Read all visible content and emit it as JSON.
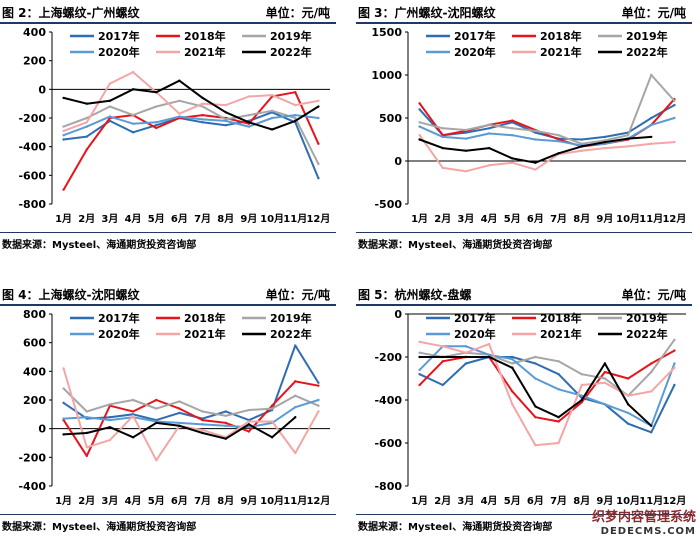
{
  "panels": [
    {
      "title": "图 2：上海螺纹-广州螺纹",
      "unit": "单位：元/吨",
      "source": "数据来源：Mysteel、海通期货投资咨询部"
    },
    {
      "title": "图 3：广州螺纹-沈阳螺纹",
      "unit": "单位：元/吨",
      "source": "数据来源：Mysteel、海通期货投资咨询部"
    },
    {
      "title": "图 4：上海螺纹-沈阳螺纹",
      "unit": "单位：元/吨",
      "source": "数据来源：Mysteel、海通期货投资咨询部"
    },
    {
      "title": "图 5：杭州螺纹-盘螺",
      "unit": "单位：元/吨",
      "source": "数据来源：Mysteel、海通期货投资咨询部"
    }
  ],
  "watermark": {
    "line1": "织梦内容管理系统",
    "line2": "DEDECMS.COM"
  },
  "series_style": [
    {
      "name": "2017年",
      "color": "#2e6db4"
    },
    {
      "name": "2018年",
      "color": "#e8141b"
    },
    {
      "name": "2019年",
      "color": "#a6a6a6"
    },
    {
      "name": "2020年",
      "color": "#5b9bd5"
    },
    {
      "name": "2021年",
      "color": "#f4a6a6"
    },
    {
      "name": "2022年",
      "color": "#000000"
    }
  ],
  "chart_data": [
    {
      "type": "line",
      "categories": [
        "1月",
        "2月",
        "3月",
        "4月",
        "5月",
        "6月",
        "7月",
        "8月",
        "9月",
        "10月",
        "11月",
        "12月"
      ],
      "ylim": [
        -800,
        400
      ],
      "yticks": [
        400,
        200,
        0,
        -200,
        -400,
        -600,
        -800
      ],
      "series": [
        {
          "name": "2017年",
          "values": [
            -350,
            -330,
            -220,
            -300,
            -250,
            -200,
            -230,
            -250,
            -220,
            -160,
            -230,
            -620
          ]
        },
        {
          "name": "2018年",
          "values": [
            -700,
            -420,
            -200,
            -180,
            -270,
            -200,
            -180,
            -200,
            -240,
            -50,
            -20,
            -380
          ]
        },
        {
          "name": "2019年",
          "values": [
            -260,
            -200,
            -120,
            -180,
            -120,
            -80,
            -120,
            -210,
            -180,
            -150,
            -200,
            -520
          ]
        },
        {
          "name": "2020年",
          "values": [
            -320,
            -260,
            -190,
            -240,
            -230,
            -190,
            -210,
            -220,
            -260,
            -200,
            -180,
            -200
          ]
        },
        {
          "name": "2021年",
          "values": [
            -290,
            -230,
            40,
            120,
            -20,
            -170,
            -100,
            -110,
            -50,
            -40,
            -110,
            -80
          ]
        },
        {
          "name": "2022年",
          "values": [
            -60,
            -100,
            -80,
            0,
            -20,
            60,
            -60,
            -160,
            -230,
            -280,
            -220,
            -120
          ]
        }
      ]
    },
    {
      "type": "line",
      "categories": [
        "1月",
        "2月",
        "3月",
        "4月",
        "5月",
        "6月",
        "7月",
        "8月",
        "9月",
        "10月",
        "11月",
        "12月"
      ],
      "ylim": [
        -500,
        1500
      ],
      "yticks": [
        1500,
        1000,
        500,
        0,
        -500
      ],
      "series": [
        {
          "name": "2017年",
          "values": [
            600,
            300,
            330,
            380,
            450,
            330,
            260,
            250,
            280,
            330,
            500,
            650
          ]
        },
        {
          "name": "2018年",
          "values": [
            670,
            300,
            350,
            420,
            470,
            360,
            250,
            170,
            200,
            250,
            420,
            720
          ]
        },
        {
          "name": "2019年",
          "values": [
            450,
            380,
            360,
            420,
            380,
            350,
            300,
            200,
            240,
            300,
            1000,
            700
          ]
        },
        {
          "name": "2020年",
          "values": [
            400,
            280,
            260,
            320,
            300,
            250,
            230,
            180,
            200,
            260,
            420,
            500
          ]
        },
        {
          "name": "2021年",
          "values": [
            300,
            -80,
            -120,
            -50,
            -20,
            -100,
            80,
            120,
            150,
            170,
            200,
            220
          ]
        },
        {
          "name": "2022年",
          "values": [
            250,
            150,
            120,
            150,
            30,
            -20,
            90,
            170,
            220,
            260,
            280,
            null
          ]
        }
      ]
    },
    {
      "type": "line",
      "categories": [
        "1月",
        "2月",
        "3月",
        "4月",
        "5月",
        "6月",
        "7月",
        "8月",
        "9月",
        "10月",
        "11月",
        "12月"
      ],
      "ylim": [
        -400,
        800
      ],
      "yticks": [
        800,
        600,
        400,
        200,
        0,
        -200,
        -400
      ],
      "series": [
        {
          "name": "2017年",
          "values": [
            180,
            70,
            80,
            100,
            60,
            110,
            70,
            120,
            60,
            130,
            580,
            320
          ]
        },
        {
          "name": "2018年",
          "values": [
            60,
            -190,
            160,
            120,
            200,
            140,
            60,
            40,
            -20,
            160,
            330,
            300
          ]
        },
        {
          "name": "2019年",
          "values": [
            280,
            120,
            170,
            200,
            140,
            190,
            120,
            90,
            130,
            140,
            230,
            160
          ]
        },
        {
          "name": "2020年",
          "values": [
            70,
            80,
            60,
            80,
            50,
            40,
            30,
            20,
            10,
            40,
            150,
            200
          ]
        },
        {
          "name": "2021年",
          "values": [
            420,
            -130,
            -80,
            90,
            -220,
            20,
            -10,
            -60,
            50,
            50,
            -170,
            120
          ]
        },
        {
          "name": "2022年",
          "values": [
            -40,
            -30,
            10,
            -60,
            40,
            20,
            -30,
            -70,
            30,
            -60,
            80,
            null
          ]
        }
      ]
    },
    {
      "type": "line",
      "categories": [
        "1月",
        "2月",
        "3月",
        "4月",
        "5月",
        "6月",
        "7月",
        "8月",
        "9月",
        "10月",
        "11月",
        "12月"
      ],
      "ylim": [
        -800,
        0
      ],
      "yticks": [
        0,
        -200,
        -400,
        -600,
        -800
      ],
      "series": [
        {
          "name": "2017年",
          "values": [
            -280,
            -330,
            -230,
            -200,
            -200,
            -230,
            -280,
            -390,
            -420,
            -510,
            -550,
            -330
          ]
        },
        {
          "name": "2018年",
          "values": [
            -330,
            -220,
            -200,
            -200,
            -360,
            -480,
            -500,
            -410,
            -270,
            -300,
            -230,
            -170
          ]
        },
        {
          "name": "2019年",
          "values": [
            -180,
            -200,
            -180,
            -190,
            -230,
            -200,
            -220,
            -280,
            -300,
            -380,
            -270,
            -120
          ]
        },
        {
          "name": "2020年",
          "values": [
            -260,
            -150,
            -150,
            -190,
            -210,
            -300,
            -350,
            -380,
            -420,
            -460,
            -520,
            -230
          ]
        },
        {
          "name": "2021年",
          "values": [
            -130,
            -150,
            -180,
            -140,
            -420,
            -610,
            -600,
            -330,
            -320,
            -380,
            -360,
            -250
          ]
        },
        {
          "name": "2022年",
          "values": [
            -200,
            -200,
            -200,
            -200,
            -250,
            -430,
            -480,
            -400,
            -230,
            -420,
            -520,
            null
          ]
        }
      ]
    }
  ]
}
